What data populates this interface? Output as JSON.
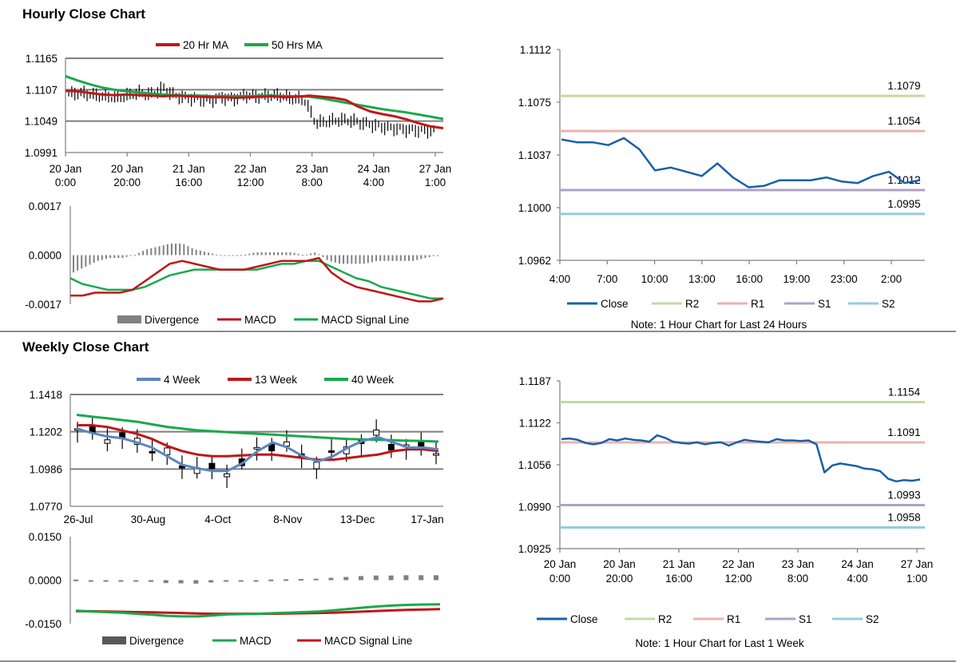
{
  "sections": {
    "hourly_title": "Hourly Close Chart",
    "weekly_title": "Weekly Close Chart"
  },
  "colors": {
    "red": "#c0161a",
    "green": "#1aa84c",
    "blue": "#1a5fa8",
    "lightblue": "#5b86be",
    "r2": "#c4d9a3",
    "r1": "#e8b3b0",
    "s1": "#b0a0c8",
    "s2": "#93cddd",
    "div": "#808080"
  },
  "chart_data": [
    {
      "id": "hourly_price",
      "type": "line",
      "title": "",
      "legend": [
        "20 Hr MA",
        "50 Hrs MA"
      ],
      "ylim": [
        1.0991,
        1.1165
      ],
      "yticks": [
        "1.1165",
        "1.1107",
        "1.1049",
        "1.0991"
      ],
      "xticks": [
        [
          "20 Jan",
          "0:00"
        ],
        [
          "20 Jan",
          "20:00"
        ],
        [
          "21 Jan",
          "16:00"
        ],
        [
          "22 Jan",
          "12:00"
        ],
        [
          "23 Jan",
          "8:00"
        ],
        [
          "24 Jan",
          "4:00"
        ],
        [
          "27 Jan",
          "1:00"
        ]
      ],
      "series": [
        {
          "name": "20 Hr MA",
          "values": [
            1.1105,
            1.1104,
            1.1101,
            1.1098,
            1.1097,
            1.1098,
            1.1097,
            1.1096,
            1.1095,
            1.1096,
            1.1095,
            1.1094,
            1.1093,
            1.1093,
            1.1092,
            1.1093,
            1.1094,
            1.1095,
            1.1093,
            1.1094,
            1.1096,
            1.1094,
            1.1092,
            1.1088,
            1.1076,
            1.1067,
            1.1062,
            1.1058,
            1.1052,
            1.1045,
            1.1039,
            1.1036
          ]
        },
        {
          "name": "50 Hrs MA",
          "values": [
            1.1132,
            1.1124,
            1.1117,
            1.1111,
            1.1107,
            1.1104,
            1.1102,
            1.11,
            1.1098,
            1.1097,
            1.1096,
            1.1096,
            1.1095,
            1.1095,
            1.1095,
            1.1095,
            1.1096,
            1.1096,
            1.1095,
            1.1095,
            1.1094,
            1.1091,
            1.1087,
            1.1083,
            1.1079,
            1.1075,
            1.1071,
            1.1068,
            1.1065,
            1.1061,
            1.1057,
            1.1053
          ]
        },
        {
          "name": "Close",
          "values": [
            1.1099,
            1.1101,
            1.1097,
            1.1095,
            1.1092,
            1.1096,
            1.1101,
            1.1098,
            1.111,
            1.1096,
            1.1092,
            1.109,
            1.1088,
            1.1093,
            1.109,
            1.1097,
            1.1094,
            1.1096,
            1.1096,
            1.109,
            1.1089,
            1.1045,
            1.1048,
            1.1051,
            1.105,
            1.1045,
            1.1041,
            1.1037,
            1.1035,
            1.1033,
            1.1032,
            1.1031
          ]
        }
      ]
    },
    {
      "id": "hourly_macd",
      "type": "line",
      "ylim": [
        -0.0017,
        0.0017
      ],
      "yticks": [
        "0.0017",
        "0.0000",
        "-0.0017"
      ],
      "legend": [
        "Divergence",
        "MACD",
        "MACD Signal Line"
      ],
      "series": [
        {
          "name": "MACD",
          "values": [
            -0.0014,
            -0.0014,
            -0.0013,
            -0.0013,
            -0.0013,
            -0.0012,
            -0.0009,
            -0.0006,
            -0.0003,
            -0.0002,
            -0.0003,
            -0.0004,
            -0.0005,
            -0.0005,
            -0.0005,
            -0.0004,
            -0.0003,
            -0.0002,
            -0.0002,
            -0.0002,
            -0.0001,
            -0.0006,
            -0.0009,
            -0.0011,
            -0.0012,
            -0.0013,
            -0.0014,
            -0.0015,
            -0.0016,
            -0.0016,
            -0.0015
          ]
        },
        {
          "name": "MACD Signal Line",
          "values": [
            -0.0008,
            -0.001,
            -0.0011,
            -0.0012,
            -0.0012,
            -0.0012,
            -0.0011,
            -0.0009,
            -0.0007,
            -0.0006,
            -0.0005,
            -0.0005,
            -0.0005,
            -0.0005,
            -0.0005,
            -0.0005,
            -0.0004,
            -0.0003,
            -0.0003,
            -0.0002,
            -0.0002,
            -0.0004,
            -0.0006,
            -0.0008,
            -0.0009,
            -0.0011,
            -0.0012,
            -0.0013,
            -0.0014,
            -0.0015,
            -0.0015
          ]
        },
        {
          "name": "Divergence",
          "values": [
            -0.0006,
            -0.0004,
            -0.0002,
            -0.0001,
            -0.0001,
            0.0,
            0.0002,
            0.0003,
            0.0004,
            0.0004,
            0.0002,
            0.0001,
            0.0,
            0.0,
            0.0,
            0.0001,
            0.0001,
            0.0001,
            0.0001,
            0.0,
            0.0001,
            -0.0002,
            -0.0003,
            -0.0003,
            -0.0003,
            -0.0002,
            -0.0002,
            -0.0002,
            -0.0002,
            -0.0001,
            0.0
          ]
        }
      ]
    },
    {
      "id": "hourly_levels",
      "type": "line",
      "ylim": [
        1.0962,
        1.1112
      ],
      "yticks": [
        "1.1112",
        "1.1075",
        "1.1037",
        "1.1000",
        "1.0962"
      ],
      "xticks": [
        "4:00",
        "7:00",
        "10:00",
        "13:00",
        "16:00",
        "19:00",
        "23:00",
        "2:00"
      ],
      "levels": [
        {
          "name": "R2",
          "value": 1.1079,
          "label": "1.1079"
        },
        {
          "name": "R1",
          "value": 1.1054,
          "label": "1.1054"
        },
        {
          "name": "S1",
          "value": 1.1012,
          "label": "1.1012"
        },
        {
          "name": "S2",
          "value": 1.0995,
          "label": "1.0995"
        }
      ],
      "series": [
        {
          "name": "Close",
          "values": [
            1.1048,
            1.1046,
            1.1046,
            1.1044,
            1.1049,
            1.1041,
            1.1026,
            1.1028,
            1.1025,
            1.1022,
            1.1031,
            1.1021,
            1.1014,
            1.1015,
            1.1019,
            1.1019,
            1.1019,
            1.1021,
            1.1018,
            1.1017,
            1.1022,
            1.1025,
            1.1017,
            1.1019
          ]
        }
      ],
      "legend": [
        "Close",
        "R2",
        "R1",
        "S1",
        "S2"
      ],
      "note": "Note: 1 Hour Chart for Last 24 Hours"
    },
    {
      "id": "weekly_price",
      "type": "line",
      "ylim": [
        1.077,
        1.1418
      ],
      "yticks": [
        "1.1418",
        "1.1202",
        "1.0986",
        "1.0770"
      ],
      "xticks": [
        "26-Jul",
        "30-Aug",
        "4-Oct",
        "8-Nov",
        "13-Dec",
        "17-Jan"
      ],
      "legend": [
        "4 Week",
        "13 Week",
        "40 Week"
      ],
      "series": [
        {
          "name": "4 Week",
          "values": [
            1.122,
            1.1195,
            1.1175,
            1.1165,
            1.114,
            1.111,
            1.106,
            1.101,
            1.099,
            1.0975,
            1.0975,
            1.102,
            1.109,
            1.114,
            1.111,
            1.106,
            1.103,
            1.106,
            1.111,
            1.115,
            1.117,
            1.114,
            1.111,
            1.111,
            1.11
          ]
        },
        {
          "name": "13 Week",
          "values": [
            1.124,
            1.124,
            1.123,
            1.121,
            1.119,
            1.116,
            1.112,
            1.109,
            1.107,
            1.106,
            1.106,
            1.1065,
            1.107,
            1.107,
            1.106,
            1.105,
            1.104,
            1.104,
            1.105,
            1.106,
            1.107,
            1.109,
            1.11,
            1.11,
            1.109
          ]
        },
        {
          "name": "40 Week",
          "values": [
            1.13,
            1.129,
            1.128,
            1.127,
            1.126,
            1.1245,
            1.123,
            1.122,
            1.121,
            1.1205,
            1.12,
            1.1195,
            1.119,
            1.1185,
            1.118,
            1.1175,
            1.117,
            1.1165,
            1.116,
            1.1158,
            1.1155,
            1.1153,
            1.115,
            1.1148,
            1.1145
          ]
        }
      ]
    },
    {
      "id": "weekly_macd",
      "type": "line",
      "ylim": [
        -0.015,
        0.015
      ],
      "yticks": [
        "0.0150",
        "0.0000",
        "-0.0150"
      ],
      "legend": [
        "Divergence",
        "MACD",
        "MACD Signal Line"
      ],
      "series": [
        {
          "name": "MACD",
          "values": [
            -0.0105,
            -0.0108,
            -0.011,
            -0.0112,
            -0.0116,
            -0.0119,
            -0.0123,
            -0.0125,
            -0.0125,
            -0.0122,
            -0.0118,
            -0.0117,
            -0.0116,
            -0.0114,
            -0.0112,
            -0.011,
            -0.0108,
            -0.0104,
            -0.0099,
            -0.0094,
            -0.009,
            -0.0087,
            -0.0085,
            -0.0084,
            -0.0083
          ]
        },
        {
          "name": "MACD Signal Line",
          "values": [
            -0.0107,
            -0.0107,
            -0.0108,
            -0.0109,
            -0.011,
            -0.0111,
            -0.0112,
            -0.0113,
            -0.0115,
            -0.0116,
            -0.0116,
            -0.0116,
            -0.0116,
            -0.0116,
            -0.0115,
            -0.0114,
            -0.0113,
            -0.0112,
            -0.011,
            -0.0108,
            -0.0106,
            -0.0104,
            -0.0102,
            -0.0101,
            -0.01
          ]
        },
        {
          "name": "Divergence",
          "values": [
            0.0002,
            0.0,
            -0.0001,
            -0.0002,
            -0.0004,
            -0.0006,
            -0.001,
            -0.0011,
            -0.0012,
            -0.0008,
            -0.0004,
            -0.0002,
            0.0,
            0.0002,
            0.0003,
            0.0004,
            0.0005,
            0.0008,
            0.0011,
            0.0014,
            0.0016,
            0.0016,
            0.0017,
            0.0017,
            0.0017
          ]
        }
      ]
    },
    {
      "id": "weekly_levels",
      "type": "line",
      "ylim": [
        1.0925,
        1.1187
      ],
      "yticks": [
        "1.1187",
        "1.1122",
        "1.1056",
        "1.0990",
        "1.0925"
      ],
      "xticks": [
        [
          "20 Jan",
          "0:00"
        ],
        [
          "20 Jan",
          "20:00"
        ],
        [
          "21 Jan",
          "16:00"
        ],
        [
          "22 Jan",
          "12:00"
        ],
        [
          "23 Jan",
          "8:00"
        ],
        [
          "24 Jan",
          "4:00"
        ],
        [
          "27 Jan",
          "1:00"
        ]
      ],
      "levels": [
        {
          "name": "R2",
          "value": 1.1154,
          "label": "1.1154"
        },
        {
          "name": "R1",
          "value": 1.1091,
          "label": "1.1091"
        },
        {
          "name": "S1",
          "value": 1.0993,
          "label": "1.0993"
        },
        {
          "name": "S2",
          "value": 1.0958,
          "label": "1.0958"
        }
      ],
      "series": [
        {
          "name": "Close",
          "values": [
            1.1096,
            1.1097,
            1.1095,
            1.109,
            1.1088,
            1.109,
            1.1096,
            1.1094,
            1.1097,
            1.1095,
            1.1094,
            1.1092,
            1.1102,
            1.1098,
            1.1092,
            1.109,
            1.1089,
            1.1091,
            1.1088,
            1.109,
            1.1091,
            1.1086,
            1.1091,
            1.1095,
            1.1093,
            1.1092,
            1.1091,
            1.1096,
            1.1094,
            1.1094,
            1.1093,
            1.1094,
            1.1088,
            1.1044,
            1.1055,
            1.1058,
            1.1056,
            1.1054,
            1.105,
            1.1049,
            1.1046,
            1.1034,
            1.103,
            1.1032,
            1.1031,
            1.1033
          ]
        }
      ],
      "legend": [
        "Close",
        "R2",
        "R1",
        "S1",
        "S2"
      ],
      "note": "Note: 1 Hour Chart for Last 1 Week"
    }
  ]
}
